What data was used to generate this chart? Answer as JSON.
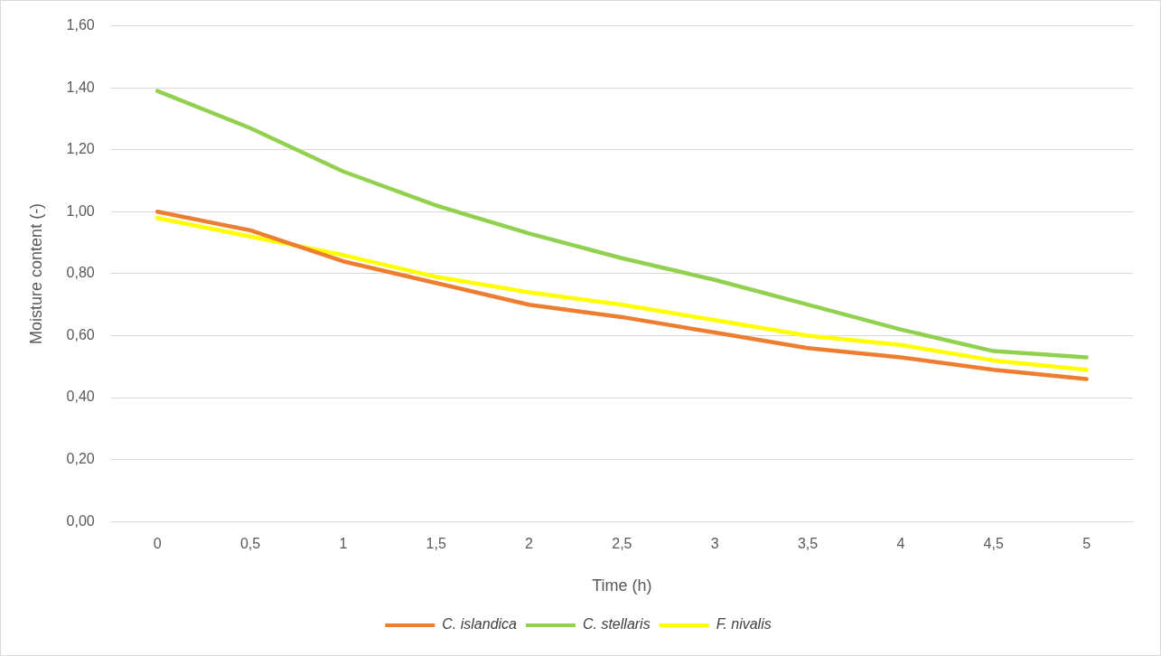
{
  "chart_data": {
    "type": "line",
    "xlabel": "Time (h)",
    "ylabel": "Moisture content (-)",
    "categories": [
      "0",
      "0,5",
      "1",
      "1,5",
      "2",
      "2,5",
      "3",
      "3,5",
      "4",
      "4,5",
      "5"
    ],
    "series": [
      {
        "name": "C. islandica",
        "color": "#ed7d31",
        "values": [
          1.0,
          0.94,
          0.84,
          0.77,
          0.7,
          0.66,
          0.61,
          0.56,
          0.53,
          0.49,
          0.46
        ]
      },
      {
        "name": "C. stellaris",
        "color": "#92d050",
        "values": [
          1.39,
          1.27,
          1.13,
          1.02,
          0.93,
          0.85,
          0.78,
          0.7,
          0.62,
          0.55,
          0.53
        ]
      },
      {
        "name": "F. nivalis",
        "color": "#ffff00",
        "values": [
          0.98,
          0.92,
          0.86,
          0.79,
          0.74,
          0.7,
          0.65,
          0.6,
          0.57,
          0.52,
          0.49
        ]
      }
    ],
    "ylim": [
      0,
      1.6
    ],
    "yticks": [
      {
        "value": 0,
        "label": "0,00"
      },
      {
        "value": 0.2,
        "label": "0,20"
      },
      {
        "value": 0.4,
        "label": "0,40"
      },
      {
        "value": 0.6,
        "label": "0,60"
      },
      {
        "value": 0.8,
        "label": "0,80"
      },
      {
        "value": 1.0,
        "label": "1,00"
      },
      {
        "value": 1.2,
        "label": "1,20"
      },
      {
        "value": 1.4,
        "label": "1,40"
      },
      {
        "value": 1.6,
        "label": "1,60"
      }
    ],
    "grid": "y",
    "legend": "bottom",
    "marker": "none",
    "line_style": "solid"
  }
}
